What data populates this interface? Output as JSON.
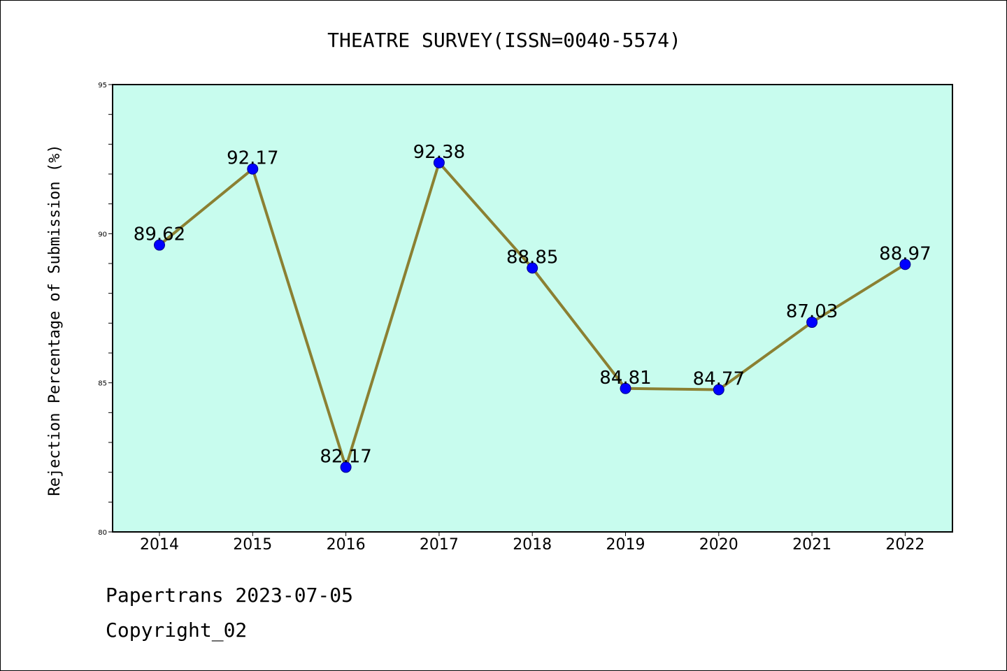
{
  "chart_data": {
    "type": "line",
    "title": "THEATRE SURVEY(ISSN=0040-5574)",
    "xlabel": "",
    "ylabel": "Rejection Percentage of Submission (%)",
    "categories": [
      "2014",
      "2015",
      "2016",
      "2017",
      "2018",
      "2019",
      "2020",
      "2021",
      "2022"
    ],
    "series": [
      {
        "name": "Rejection Percentage",
        "values": [
          89.62,
          92.17,
          82.17,
          92.38,
          88.85,
          84.81,
          84.77,
          87.03,
          88.97
        ],
        "labels": [
          "89.62",
          "92.17",
          "82.17",
          "92.38",
          "88.85",
          "84.81",
          "84.77",
          "87.03",
          "88.97"
        ]
      }
    ],
    "ylim": [
      80,
      95
    ],
    "yticks": [
      "80",
      "85",
      "90",
      "95"
    ],
    "grid": false,
    "colors": {
      "plot_bg": "#c8fcee",
      "line": "#8b8032",
      "marker": "#0000ff"
    }
  },
  "footer": {
    "line1": "Papertrans 2023-07-05",
    "line2": "Copyright_02"
  }
}
